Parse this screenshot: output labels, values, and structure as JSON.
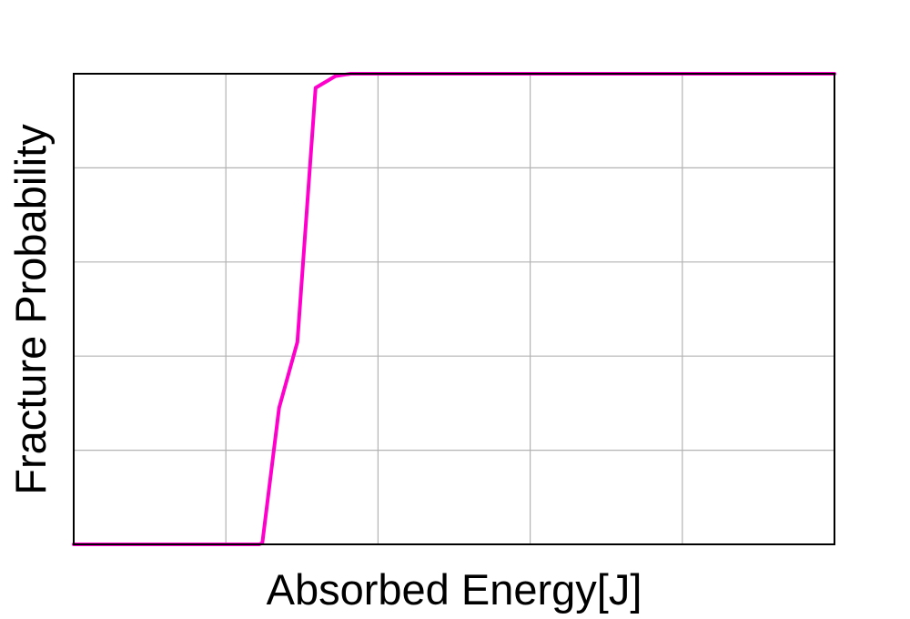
{
  "chart_data": {
    "type": "line",
    "title": "",
    "xlabel": "Absorbed Energy[J]",
    "ylabel": "Fracture Probability",
    "xlim": [
      0,
      50
    ],
    "ylim": [
      0,
      1
    ],
    "x_grid_count": 5,
    "y_grid_count": 5,
    "grid": true,
    "legend": "none",
    "series": [
      {
        "color": "#ff00cc",
        "points": [
          [
            0,
            0.0
          ],
          [
            12.2,
            0.0
          ],
          [
            12.4,
            0.003
          ],
          [
            13.5,
            0.29
          ],
          [
            14.7,
            0.43
          ],
          [
            15.9,
            0.97
          ],
          [
            17.2,
            0.995
          ],
          [
            18.2,
            1.0
          ],
          [
            25,
            1.0
          ],
          [
            50,
            1.0
          ]
        ]
      }
    ]
  }
}
